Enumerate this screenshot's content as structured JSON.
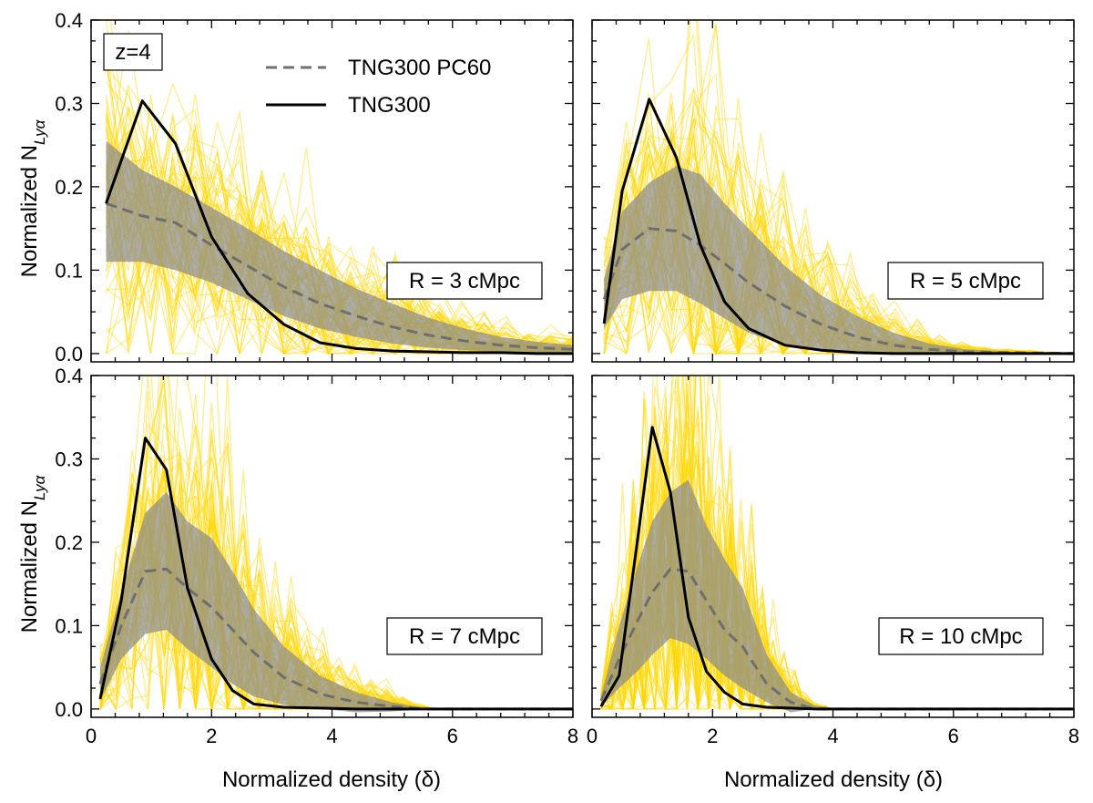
{
  "chart_data": {
    "type": "line",
    "layout": "2x2 grid of panels, shared x and y axes",
    "xlim": [
      0,
      8
    ],
    "ylim": [
      0,
      0.4
    ],
    "xticks": [
      0,
      2,
      4,
      6,
      8
    ],
    "yticks": [
      0.0,
      0.1,
      0.2,
      0.3,
      0.4
    ],
    "xtick_labels": [
      "0",
      "2",
      "4",
      "6",
      "8"
    ],
    "ytick_labels": [
      "0.0",
      "0.1",
      "0.2",
      "0.3",
      "0.4"
    ],
    "xlabel": "Normalized density (δ)",
    "ylabel_main": "Normalized N",
    "ylabel_sub": "Lyα",
    "redshift_label": "z=4",
    "legend": {
      "placement": "top-center of first panel",
      "entries": [
        {
          "label": "TNG300 PC60",
          "style": "dashed",
          "color": "#707070"
        },
        {
          "label": "TNG300",
          "style": "solid",
          "color": "#000000"
        }
      ]
    },
    "colors": {
      "realizations": "#ffd700",
      "band": "#8c8c8c",
      "pc60": "#6e6e6e",
      "full": "#000000"
    },
    "panels": [
      {
        "label": "R = 3 cMpc",
        "x": [
          0.25,
          0.85,
          1.4,
          2.0,
          2.6,
          3.2,
          3.8,
          4.4,
          5.0,
          5.6,
          6.2,
          6.8,
          7.4,
          8.0
        ],
        "full": [
          0.18,
          0.303,
          0.252,
          0.14,
          0.072,
          0.035,
          0.013,
          0.006,
          0.003,
          0.002,
          0.001,
          0.001,
          0.0,
          0.0
        ],
        "pc60": [
          0.18,
          0.165,
          0.157,
          0.13,
          0.105,
          0.08,
          0.06,
          0.045,
          0.032,
          0.022,
          0.015,
          0.01,
          0.007,
          0.005
        ],
        "band_hi": [
          0.255,
          0.22,
          0.2,
          0.175,
          0.15,
          0.123,
          0.1,
          0.078,
          0.06,
          0.043,
          0.03,
          0.02,
          0.014,
          0.01
        ],
        "band_lo": [
          0.11,
          0.11,
          0.1,
          0.085,
          0.065,
          0.045,
          0.03,
          0.02,
          0.012,
          0.007,
          0.004,
          0.002,
          0.001,
          0.0
        ],
        "realization_cutoff": 8.0
      },
      {
        "label": "R = 5 cMpc",
        "x": [
          0.2,
          0.5,
          0.95,
          1.4,
          1.8,
          2.2,
          2.6,
          3.2,
          3.8,
          4.4,
          5.0,
          5.6,
          6.2,
          7.0,
          8.0
        ],
        "full": [
          0.036,
          0.195,
          0.305,
          0.235,
          0.13,
          0.062,
          0.03,
          0.01,
          0.004,
          0.001,
          0.0,
          0.0,
          0.0,
          0.0,
          0.0
        ],
        "pc60": [
          0.065,
          0.125,
          0.15,
          0.147,
          0.13,
          0.108,
          0.085,
          0.057,
          0.035,
          0.02,
          0.01,
          0.005,
          0.002,
          0.001,
          0.0
        ],
        "band_hi": [
          0.09,
          0.17,
          0.205,
          0.225,
          0.215,
          0.18,
          0.15,
          0.105,
          0.07,
          0.045,
          0.025,
          0.012,
          0.005,
          0.002,
          0.0
        ],
        "band_lo": [
          0.03,
          0.065,
          0.075,
          0.075,
          0.06,
          0.042,
          0.025,
          0.01,
          0.004,
          0.001,
          0.0,
          0.0,
          0.0,
          0.0,
          0.0
        ],
        "realization_cutoff": 8.0
      },
      {
        "label": "R = 7 cMpc",
        "x": [
          0.15,
          0.5,
          0.9,
          1.25,
          1.6,
          2.0,
          2.35,
          2.7,
          3.2,
          3.8,
          4.4,
          5.0,
          5.6,
          6.2,
          7.0,
          8.0
        ],
        "full": [
          0.012,
          0.13,
          0.325,
          0.287,
          0.145,
          0.06,
          0.022,
          0.006,
          0.002,
          0.001,
          0.0,
          0.0,
          0.0,
          0.0,
          0.0,
          0.0
        ],
        "pc60": [
          0.03,
          0.1,
          0.165,
          0.168,
          0.145,
          0.122,
          0.095,
          0.068,
          0.038,
          0.018,
          0.008,
          0.003,
          0.0,
          0.0,
          0.0,
          0.0
        ],
        "band_hi": [
          0.05,
          0.14,
          0.235,
          0.26,
          0.225,
          0.205,
          0.165,
          0.12,
          0.075,
          0.04,
          0.02,
          0.008,
          0.0,
          0.0,
          0.0,
          0.0
        ],
        "band_lo": [
          0.01,
          0.06,
          0.09,
          0.095,
          0.072,
          0.05,
          0.03,
          0.015,
          0.005,
          0.0,
          -0.004,
          -0.003,
          0.0,
          0.0,
          0.0,
          0.0
        ],
        "realization_cutoff": 5.7
      },
      {
        "label": "R = 10 cMpc",
        "x": [
          0.15,
          0.45,
          0.75,
          1.0,
          1.3,
          1.6,
          1.9,
          2.2,
          2.5,
          2.9,
          3.3,
          3.7,
          4.2,
          5.0,
          6.0,
          8.0
        ],
        "full": [
          0.003,
          0.04,
          0.2,
          0.338,
          0.26,
          0.11,
          0.045,
          0.02,
          0.006,
          0.002,
          0.001,
          0.0,
          0.0,
          0.0,
          0.0,
          0.0
        ],
        "pc60": [
          0.01,
          0.06,
          0.105,
          0.14,
          0.168,
          0.165,
          0.13,
          0.095,
          0.075,
          0.03,
          0.008,
          0.0,
          0.0,
          0.0,
          0.0,
          0.0
        ],
        "band_hi": [
          0.015,
          0.1,
          0.17,
          0.225,
          0.26,
          0.275,
          0.22,
          0.18,
          0.145,
          0.065,
          0.02,
          0.004,
          0.0,
          0.0,
          0.0,
          0.0
        ],
        "band_lo": [
          0.003,
          0.025,
          0.045,
          0.065,
          0.085,
          0.078,
          0.06,
          0.04,
          0.025,
          0.008,
          -0.004,
          0.0,
          0.0,
          0.0,
          0.0,
          0.0
        ],
        "realization_cutoff": 3.9
      }
    ]
  }
}
